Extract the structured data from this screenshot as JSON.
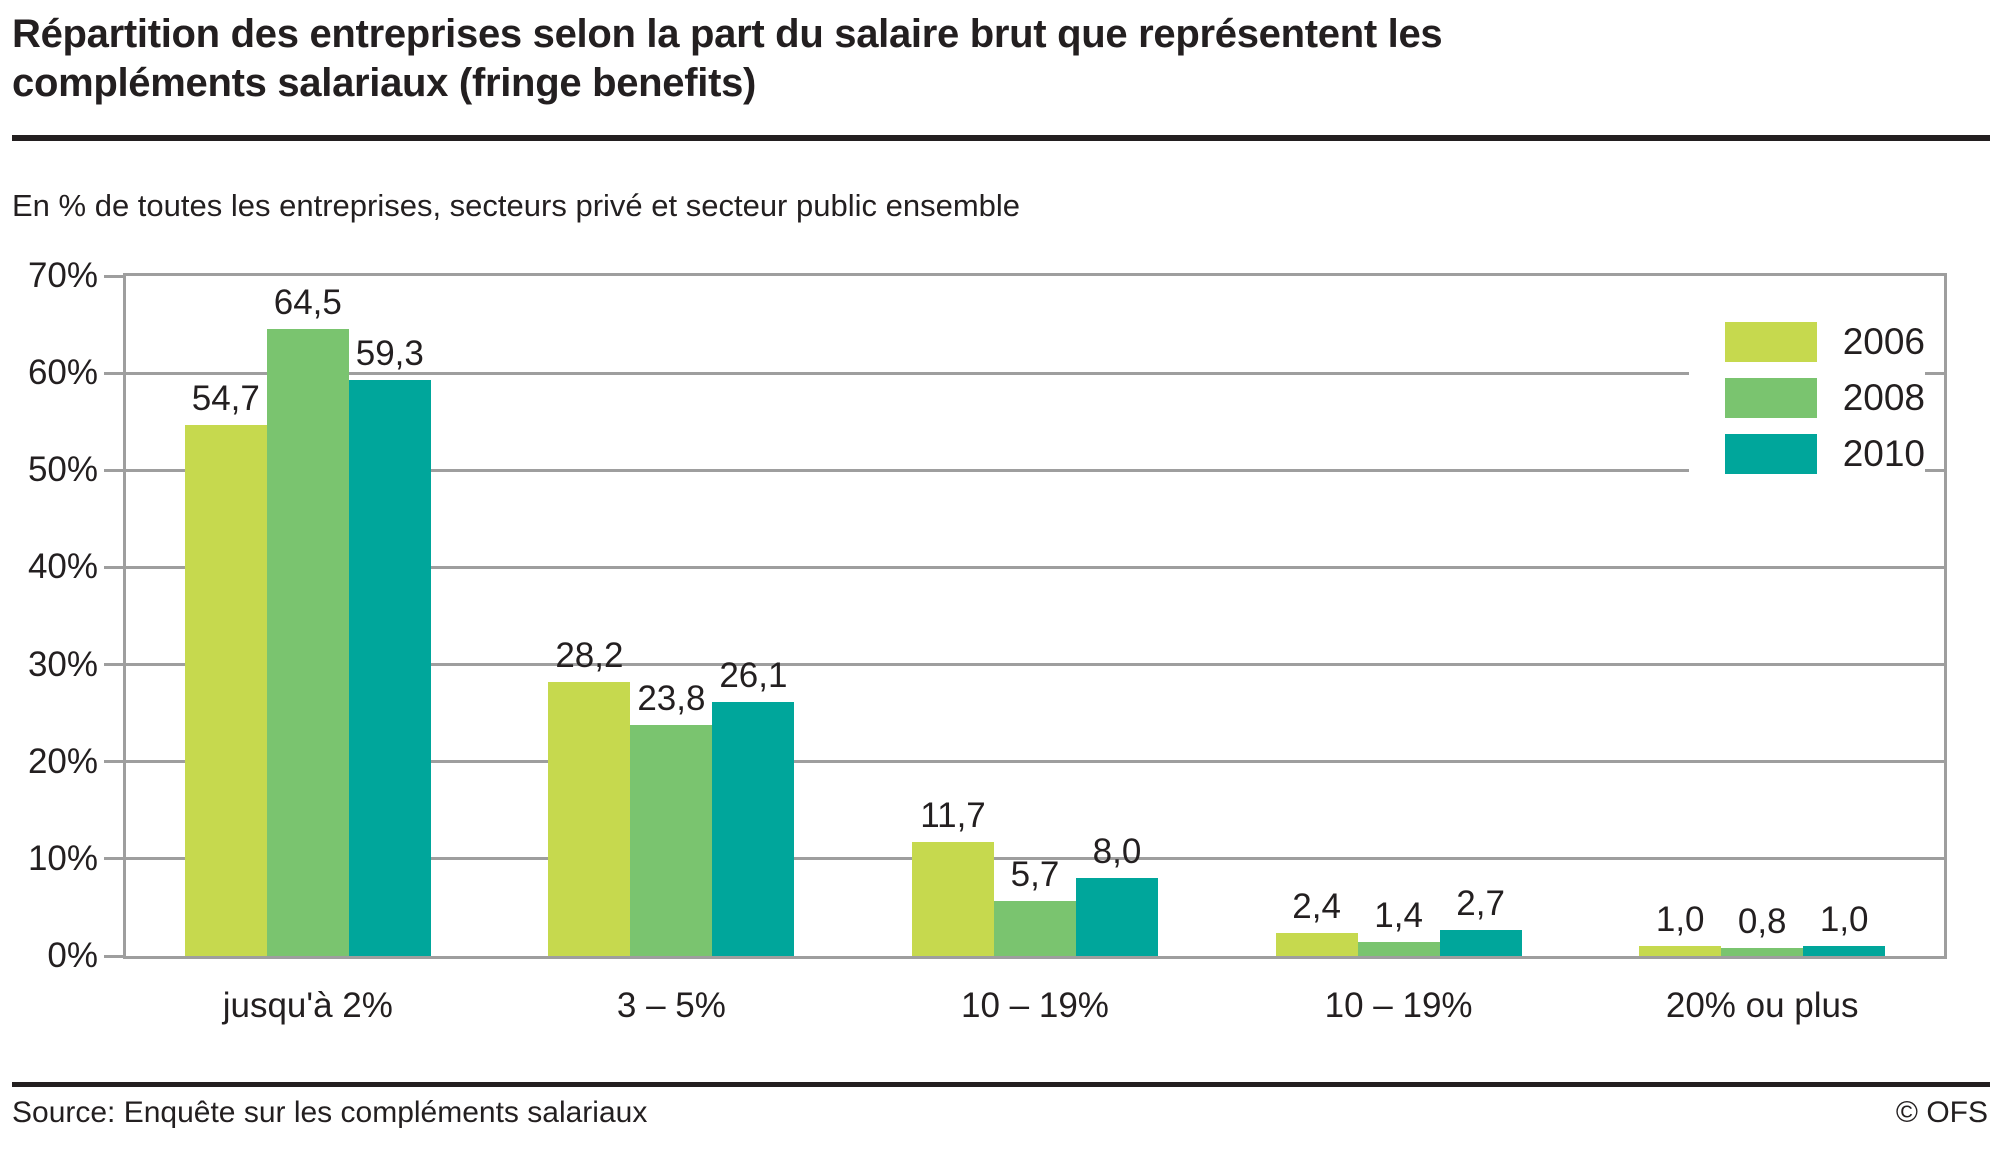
{
  "header": {
    "title": "Répartition des entreprises selon la part du salaire brut que représentent les compléments salariaux (fringe benefits)",
    "subtitle": "En % de toutes les entreprises, secteurs privé et secteur public ensemble"
  },
  "footer": {
    "source": "Source: Enquête sur les compléments salariaux",
    "copyright": "© OFS"
  },
  "chart_data": {
    "type": "bar",
    "title": "Répartition des entreprises selon la part du salaire brut que représentent les compléments salariaux (fringe benefits)",
    "subtitle": "En % de toutes les entreprises, secteurs privé et secteur public ensemble",
    "categories": [
      "jusqu'à 2%",
      "3 – 5%",
      "10 – 19%",
      "10 – 19%",
      "20% ou plus"
    ],
    "series": [
      {
        "name": "2006",
        "color": "#c6d94e",
        "values": [
          54.7,
          28.2,
          11.7,
          2.4,
          1.0
        ],
        "labels": [
          "54,7",
          "28,2",
          "11,7",
          "2,4",
          "1,0"
        ]
      },
      {
        "name": "2008",
        "color": "#7ac46f",
        "values": [
          64.5,
          23.8,
          5.7,
          1.4,
          0.8
        ],
        "labels": [
          "64,5",
          "23,8",
          "5,7",
          "1,4",
          "0,8"
        ]
      },
      {
        "name": "2010",
        "color": "#00a69b",
        "values": [
          59.3,
          26.1,
          8.0,
          2.7,
          1.0
        ],
        "labels": [
          "59,3",
          "26,1",
          "8,0",
          "2,7",
          "1,0"
        ]
      }
    ],
    "ylim": [
      0,
      70
    ],
    "ytick_step": 10,
    "ytick_suffix": "%",
    "grid": true,
    "grid_color": "#9e9e9e",
    "legend_position": "top-right"
  }
}
